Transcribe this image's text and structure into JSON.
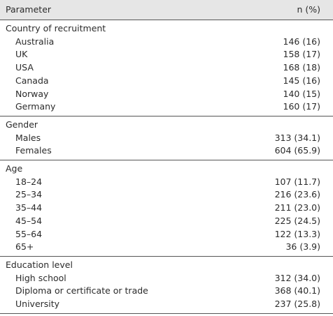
{
  "header": [
    "Parameter",
    "n (%)"
  ],
  "sections": [
    {
      "title": "Country of recruitment",
      "rows": [
        [
          "Australia",
          "146 (16)"
        ],
        [
          "UK",
          "158 (17)"
        ],
        [
          "USA",
          "168 (18)"
        ],
        [
          "Canada",
          "145 (16)"
        ],
        [
          "Norway",
          "140 (15)"
        ],
        [
          "Germany",
          "160 (17)"
        ]
      ]
    },
    {
      "title": "Gender",
      "rows": [
        [
          "Males",
          "313 (34.1)"
        ],
        [
          "Females",
          "604 (65.9)"
        ]
      ]
    },
    {
      "title": "Age",
      "rows": [
        [
          "18–24",
          "107 (11.7)"
        ],
        [
          "25–34",
          "216 (23.6)"
        ],
        [
          "35–44",
          "211 (23.0)"
        ],
        [
          "45–54",
          "225 (24.5)"
        ],
        [
          "55–64",
          "122 (13.3)"
        ],
        [
          "65+",
          "36 (3.9)"
        ]
      ]
    },
    {
      "title": "Education level",
      "rows": [
        [
          "High school",
          "312 (34.0)"
        ],
        [
          "Diploma or certificate or trade",
          "368 (40.1)"
        ],
        [
          "University",
          "237 (25.8)"
        ]
      ]
    }
  ]
}
